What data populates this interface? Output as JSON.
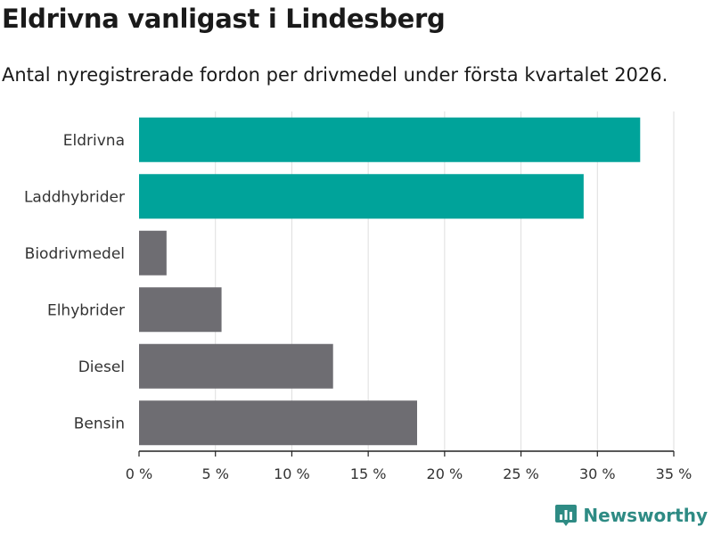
{
  "title": "Eldrivna vanligast i Lindesberg",
  "subtitle": "Antal nyregistrerade fordon per drivmedel under första kvartalet 2026.",
  "brand": {
    "name": "Newsworthy",
    "icon": "newsworthy-logo-icon",
    "color": "#2e8b84"
  },
  "colors": {
    "highlight": "#00a39a",
    "default": "#6e6d72",
    "grid": "#dedede",
    "axis": "#222222"
  },
  "chart_data": {
    "type": "bar",
    "orientation": "horizontal",
    "title": "Eldrivna vanligast i Lindesberg",
    "subtitle": "Antal nyregistrerade fordon per drivmedel under första kvartalet 2026.",
    "xlabel": "",
    "ylabel": "",
    "categories": [
      "Eldrivna",
      "Laddhybrider",
      "Biodrivmedel",
      "Elhybrider",
      "Diesel",
      "Bensin"
    ],
    "values": [
      32.8,
      29.1,
      1.8,
      5.4,
      12.7,
      18.2
    ],
    "highlighted": [
      true,
      true,
      false,
      false,
      false,
      false
    ],
    "xlim": [
      0,
      35
    ],
    "xticks": [
      0,
      5,
      10,
      15,
      20,
      25,
      30,
      35
    ],
    "xtick_labels": [
      "0 %",
      "5 %",
      "10 %",
      "15 %",
      "20 %",
      "25 %",
      "30 %",
      "35 %"
    ],
    "grid": true
  }
}
